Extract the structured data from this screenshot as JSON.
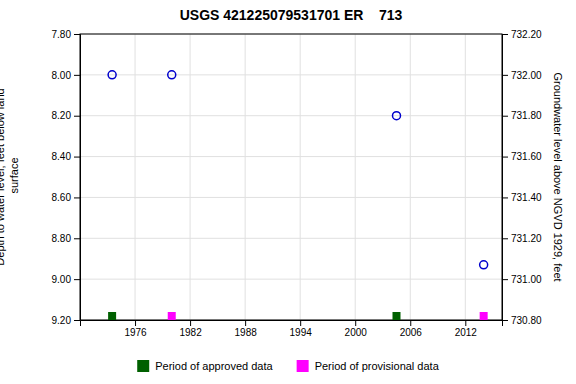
{
  "chart_data": {
    "type": "scatter",
    "title": "USGS 421225079531701 ER    713",
    "ylabel": "Depth to water level, feet below land\n surface",
    "y2label": "Groundwater level above NGVD 1929, feet",
    "x": [
      1973.5,
      1980.0,
      2004.5,
      2014.0
    ],
    "xlim": [
      1970,
      2016
    ],
    "xticks": [
      1976,
      1982,
      1988,
      1994,
      2000,
      2006,
      2012
    ],
    "ylim": [
      9.2,
      7.8
    ],
    "yticks": [
      {
        "value": 7.8,
        "label": "7.80"
      },
      {
        "value": 8.0,
        "label": "8.00"
      },
      {
        "value": 8.2,
        "label": "8.20"
      },
      {
        "value": 8.4,
        "label": "8.40"
      },
      {
        "value": 8.6,
        "label": "8.60"
      },
      {
        "value": 8.8,
        "label": "8.80"
      },
      {
        "value": 9.0,
        "label": "9.00"
      },
      {
        "value": 9.2,
        "label": "9.20"
      }
    ],
    "y2lim": [
      730.8,
      732.2
    ],
    "y2ticks": [
      {
        "value": 732.2,
        "label": "732.20"
      },
      {
        "value": 732.0,
        "label": "732.00"
      },
      {
        "value": 731.8,
        "label": "731.80"
      },
      {
        "value": 731.6,
        "label": "731.60"
      },
      {
        "value": 731.4,
        "label": "731.40"
      },
      {
        "value": 731.2,
        "label": "731.20"
      },
      {
        "value": 731.0,
        "label": "731.00"
      },
      {
        "value": 730.8,
        "label": "730.80"
      }
    ],
    "series": [
      {
        "color": "#0000cc",
        "marker": "circle",
        "values": [
          8.0,
          8.0,
          8.2,
          8.93
        ]
      },
      {
        "name": "Period of approved data",
        "color": "#006000",
        "marker": "square",
        "values": [
          9.2,
          null,
          9.2,
          null
        ]
      },
      {
        "name": "Period of provisional data",
        "color": "#ff00ff",
        "marker": "square",
        "values": [
          null,
          9.2,
          null,
          9.2
        ]
      }
    ],
    "grid": true,
    "legend": "bottom"
  }
}
